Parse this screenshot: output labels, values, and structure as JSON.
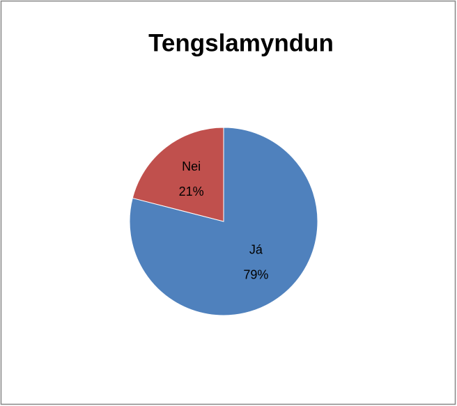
{
  "chart_data": {
    "type": "pie",
    "title": "Tengslamyndun",
    "categories": [
      "Já",
      "Nei"
    ],
    "values": [
      79,
      21
    ],
    "value_labels": [
      "79%",
      "21%"
    ],
    "colors": [
      "#4f81bd",
      "#c0504d"
    ]
  }
}
